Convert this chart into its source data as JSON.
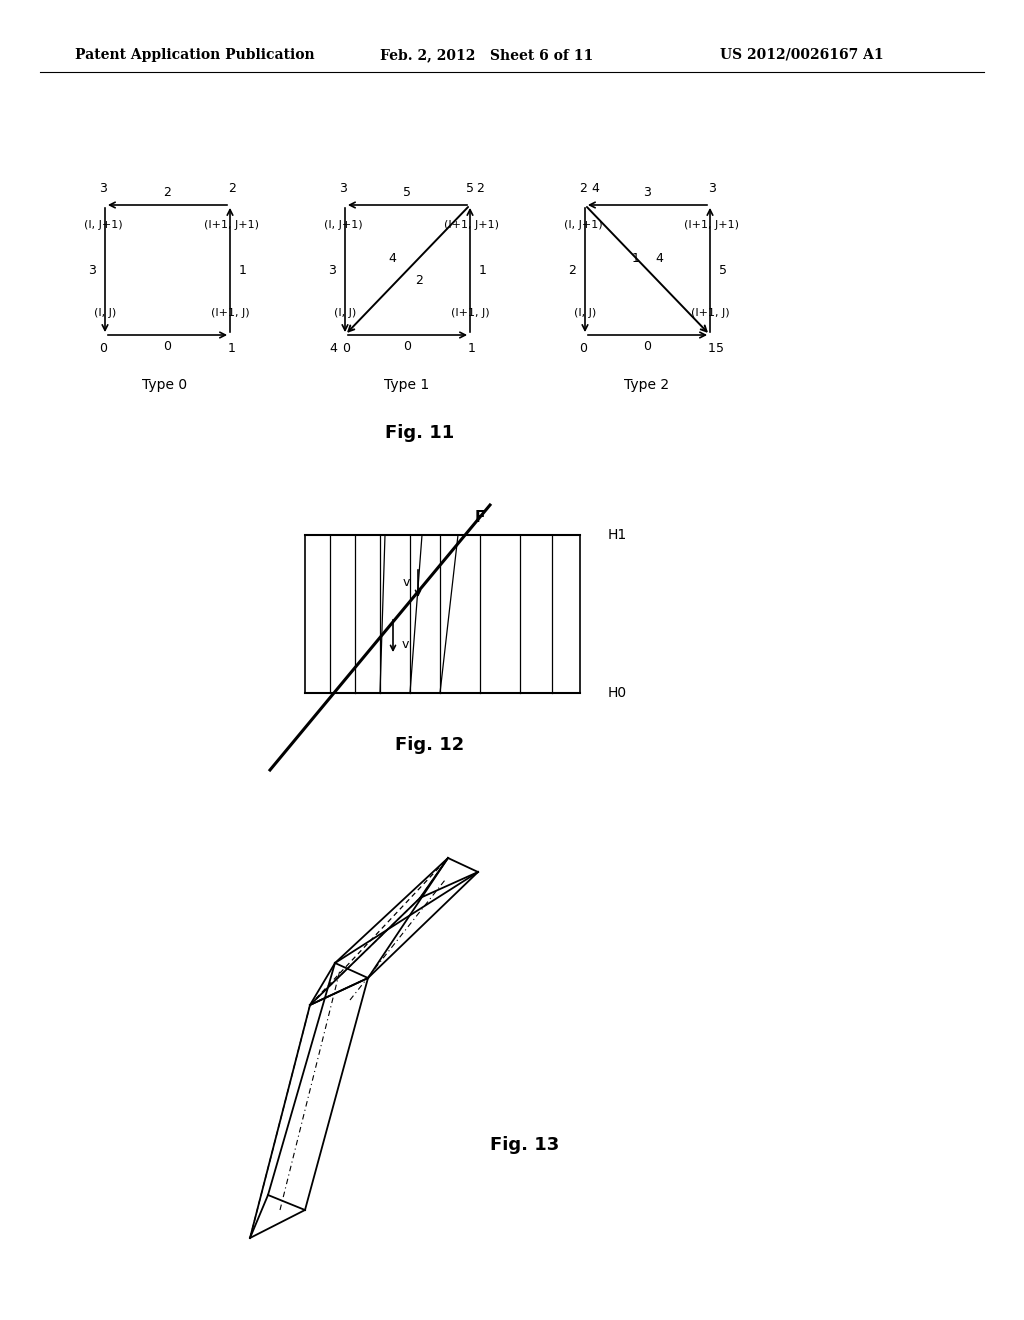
{
  "header_left": "Patent Application Publication",
  "header_mid": "Feb. 2, 2012   Sheet 6 of 11",
  "header_right": "US 2012/0026167 A1",
  "bg_color": "#ffffff"
}
